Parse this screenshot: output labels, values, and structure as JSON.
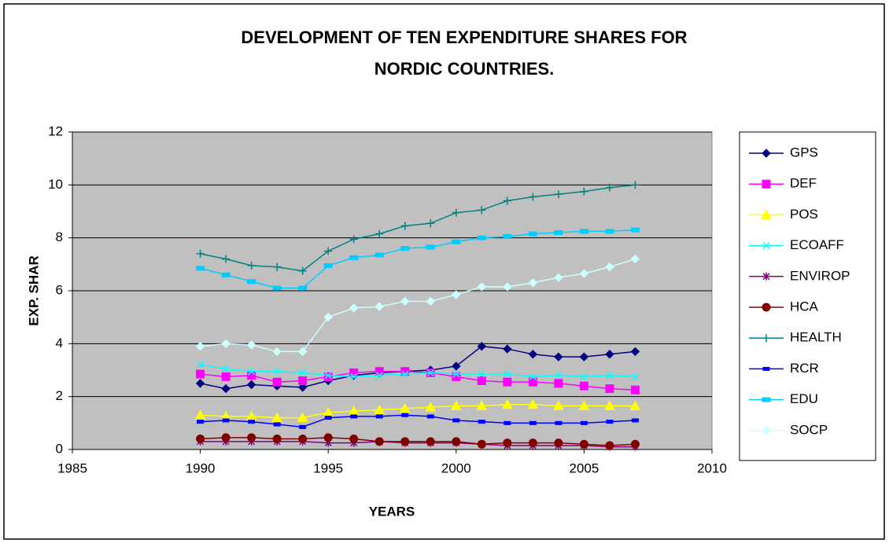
{
  "chart_data": {
    "type": "line",
    "title": "DEVELOPMENT OF TEN EXPENDITURE SHARES FOR NORDIC COUNTRIES.",
    "x_label": "YEARS",
    "y_label": "EXP. SHAR",
    "x": [
      1990,
      1991,
      1992,
      1993,
      1994,
      1995,
      1996,
      1997,
      1998,
      1999,
      2000,
      2001,
      2002,
      2003,
      2004,
      2005,
      2006,
      2007
    ],
    "xlim": [
      1985,
      2010
    ],
    "xticks": [
      1985,
      1990,
      1995,
      2000,
      2005,
      2010
    ],
    "ylim": [
      0,
      12
    ],
    "yticks": [
      0,
      2,
      4,
      6,
      8,
      10,
      12
    ],
    "grid": true,
    "legend": "right",
    "series": [
      {
        "name": "GPS",
        "color": "#000080",
        "marker": "diamond",
        "values": [
          2.5,
          2.3,
          2.45,
          2.4,
          2.35,
          2.6,
          2.8,
          2.9,
          2.95,
          3.0,
          3.15,
          3.9,
          3.8,
          3.6,
          3.5,
          3.5,
          3.6,
          3.7
        ]
      },
      {
        "name": "DEF",
        "color": "#ff00ff",
        "marker": "square",
        "values": [
          2.85,
          2.75,
          2.8,
          2.55,
          2.6,
          2.75,
          2.9,
          2.95,
          2.95,
          2.9,
          2.75,
          2.6,
          2.55,
          2.55,
          2.5,
          2.4,
          2.3,
          2.25
        ]
      },
      {
        "name": "POS",
        "color": "#ffff00",
        "marker": "triangle",
        "values": [
          1.3,
          1.25,
          1.25,
          1.2,
          1.2,
          1.4,
          1.45,
          1.5,
          1.55,
          1.6,
          1.65,
          1.65,
          1.7,
          1.7,
          1.65,
          1.65,
          1.65,
          1.65
        ]
      },
      {
        "name": "ECOAFF",
        "color": "#00ffff",
        "marker": "x",
        "values": [
          3.2,
          3.05,
          2.95,
          2.95,
          2.9,
          2.8,
          2.75,
          2.8,
          2.85,
          2.9,
          2.85,
          2.85,
          2.85,
          2.75,
          2.8,
          2.75,
          2.8,
          2.75
        ]
      },
      {
        "name": "ENVIROP",
        "color": "#800080",
        "marker": "star",
        "values": [
          0.3,
          0.3,
          0.3,
          0.3,
          0.3,
          0.25,
          0.25,
          0.3,
          0.25,
          0.25,
          0.25,
          0.2,
          0.15,
          0.15,
          0.15,
          0.15,
          0.1,
          0.1
        ]
      },
      {
        "name": "HCA",
        "color": "#800000",
        "marker": "circle",
        "values": [
          0.4,
          0.45,
          0.45,
          0.4,
          0.4,
          0.45,
          0.4,
          0.3,
          0.3,
          0.3,
          0.3,
          0.2,
          0.25,
          0.25,
          0.25,
          0.2,
          0.15,
          0.2
        ]
      },
      {
        "name": "HEALTH",
        "color": "#008080",
        "marker": "plus",
        "values": [
          7.4,
          7.2,
          6.95,
          6.9,
          6.75,
          7.5,
          7.95,
          8.15,
          8.45,
          8.55,
          8.95,
          9.05,
          9.4,
          9.55,
          9.65,
          9.75,
          9.9,
          10.0
        ]
      },
      {
        "name": "RCR",
        "color": "#0000ff",
        "marker": "dash",
        "values": [
          1.05,
          1.1,
          1.05,
          0.95,
          0.85,
          1.2,
          1.25,
          1.25,
          1.3,
          1.25,
          1.1,
          1.05,
          1.0,
          1.0,
          1.0,
          1.0,
          1.05,
          1.1
        ]
      },
      {
        "name": "EDU",
        "color": "#00ccff",
        "marker": "bar",
        "values": [
          6.85,
          6.6,
          6.35,
          6.1,
          6.1,
          6.95,
          7.25,
          7.35,
          7.6,
          7.65,
          7.85,
          8.0,
          8.05,
          8.15,
          8.2,
          8.25,
          8.25,
          8.3
        ]
      },
      {
        "name": "SOCP",
        "color": "#ccffff",
        "marker": "diamond",
        "values": [
          3.9,
          4.0,
          3.95,
          3.7,
          3.7,
          5.0,
          5.35,
          5.4,
          5.6,
          5.6,
          5.85,
          6.15,
          6.15,
          6.3,
          6.5,
          6.65,
          6.9,
          7.2
        ]
      }
    ]
  }
}
